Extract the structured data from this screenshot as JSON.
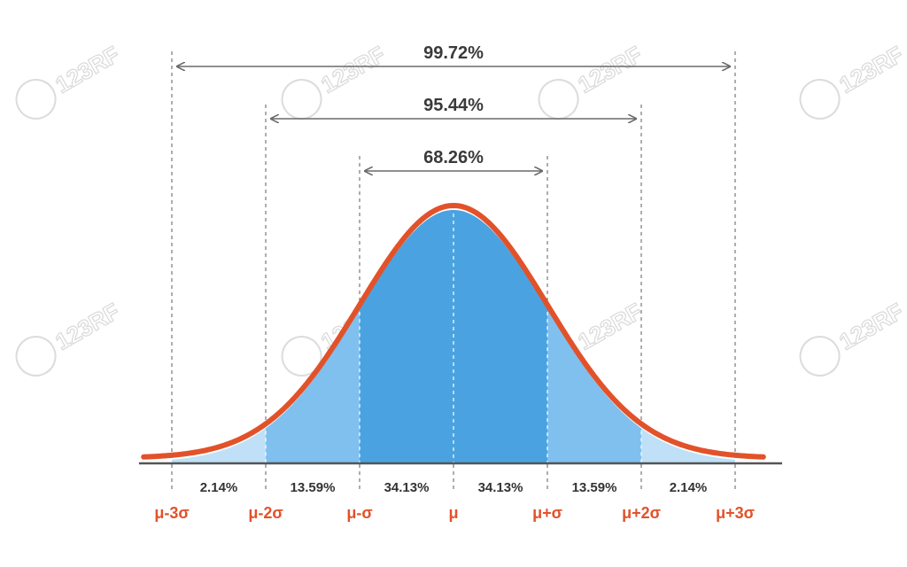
{
  "chart_data": {
    "type": "area",
    "title": "",
    "xlabel": "",
    "ylabel": "",
    "xlim": [
      -3.3,
      3.3
    ],
    "x_ticks": [
      {
        "value": -3,
        "label": "μ-3σ"
      },
      {
        "value": -2,
        "label": "μ-2σ"
      },
      {
        "value": -1,
        "label": "μ-σ"
      },
      {
        "value": 0,
        "label": "μ"
      },
      {
        "value": 1,
        "label": "μ+σ"
      },
      {
        "value": 2,
        "label": "μ+2σ"
      },
      {
        "value": 3,
        "label": "μ+3σ"
      }
    ],
    "curve": "standard normal density",
    "regions": [
      {
        "from": -3,
        "to": -2,
        "label": "2.14%",
        "color": "#bfe0f7"
      },
      {
        "from": -2,
        "to": -1,
        "label": "13.59%",
        "color": "#7fc0ef"
      },
      {
        "from": -1,
        "to": 0,
        "label": "34.13%",
        "color": "#4aa3e0"
      },
      {
        "from": 0,
        "to": 1,
        "label": "34.13%",
        "color": "#4aa3e0"
      },
      {
        "from": 1,
        "to": 2,
        "label": "13.59%",
        "color": "#7fc0ef"
      },
      {
        "from": 2,
        "to": 3,
        "label": "2.14%",
        "color": "#bfe0f7"
      }
    ],
    "ranges": [
      {
        "from": -3,
        "to": 3,
        "label": "99.72%"
      },
      {
        "from": -2,
        "to": 2,
        "label": "95.44%"
      },
      {
        "from": -1,
        "to": 1,
        "label": "68.26%"
      }
    ],
    "colors": {
      "curve": "#e2522a",
      "tick_label": "#e2522a",
      "axis": "#555555",
      "arrow": "#6a6a6a"
    }
  },
  "watermark": "123RF"
}
